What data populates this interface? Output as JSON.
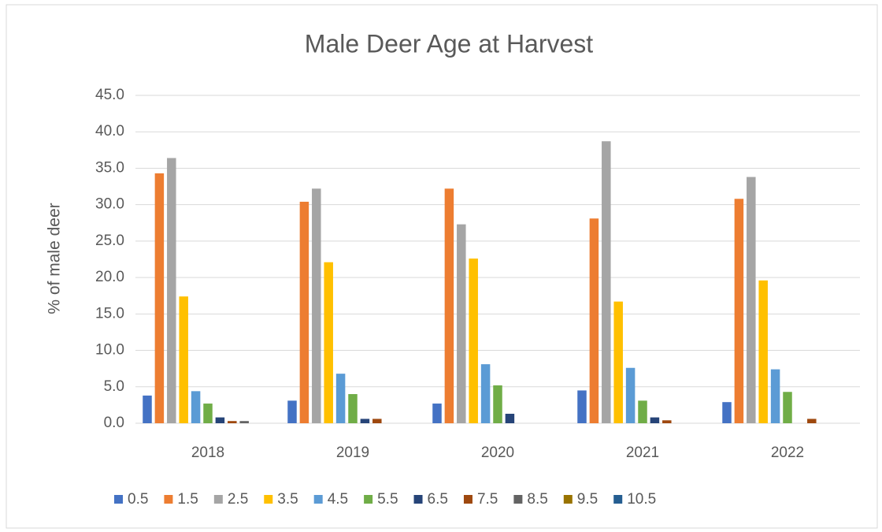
{
  "chart_data": {
    "type": "bar",
    "title": "Male Deer Age at Harvest",
    "y_label": "% of male deer",
    "categories": [
      "2018",
      "2019",
      "2020",
      "2021",
      "2022"
    ],
    "series": [
      {
        "name": "0.5",
        "color": "#4472c4",
        "values": [
          3.8,
          3.1,
          2.7,
          4.5,
          2.9
        ]
      },
      {
        "name": "1.5",
        "color": "#ed7d31",
        "values": [
          34.3,
          30.4,
          32.2,
          28.1,
          30.8
        ]
      },
      {
        "name": "2.5",
        "color": "#a5a5a5",
        "values": [
          36.4,
          32.2,
          27.3,
          38.7,
          33.8
        ]
      },
      {
        "name": "3.5",
        "color": "#ffc000",
        "values": [
          17.4,
          22.1,
          22.6,
          16.7,
          19.6
        ]
      },
      {
        "name": "4.5",
        "color": "#5b9bd5",
        "values": [
          4.4,
          6.8,
          8.1,
          7.6,
          7.4
        ]
      },
      {
        "name": "5.5",
        "color": "#70ad47",
        "values": [
          2.7,
          4.0,
          5.2,
          3.1,
          4.3
        ]
      },
      {
        "name": "6.5",
        "color": "#264478",
        "values": [
          0.8,
          0.6,
          1.3,
          0.8,
          0
        ]
      },
      {
        "name": "7.5",
        "color": "#9e480e",
        "values": [
          0.3,
          0.6,
          0,
          0.4,
          0.6
        ]
      },
      {
        "name": "8.5",
        "color": "#636363",
        "values": [
          0.3,
          0,
          0,
          0,
          0
        ]
      },
      {
        "name": "9.5",
        "color": "#997300",
        "values": [
          0,
          0,
          0,
          0,
          0
        ]
      },
      {
        "name": "10.5",
        "color": "#255e91",
        "values": [
          0,
          0,
          0,
          0,
          0
        ]
      }
    ],
    "ylim": [
      0,
      45
    ],
    "yticks": [
      {
        "value": 0,
        "label": "0.0"
      },
      {
        "value": 5,
        "label": "5.0"
      },
      {
        "value": 10,
        "label": "10.0"
      },
      {
        "value": 15,
        "label": "15.0"
      },
      {
        "value": 20,
        "label": "20.0"
      },
      {
        "value": 25,
        "label": "25.0"
      },
      {
        "value": 30,
        "label": "30.0"
      },
      {
        "value": 35,
        "label": "35.0"
      },
      {
        "value": 40,
        "label": "40.0"
      },
      {
        "value": 45,
        "label": "45.0"
      }
    ],
    "grid": true,
    "legend": "bottom"
  }
}
